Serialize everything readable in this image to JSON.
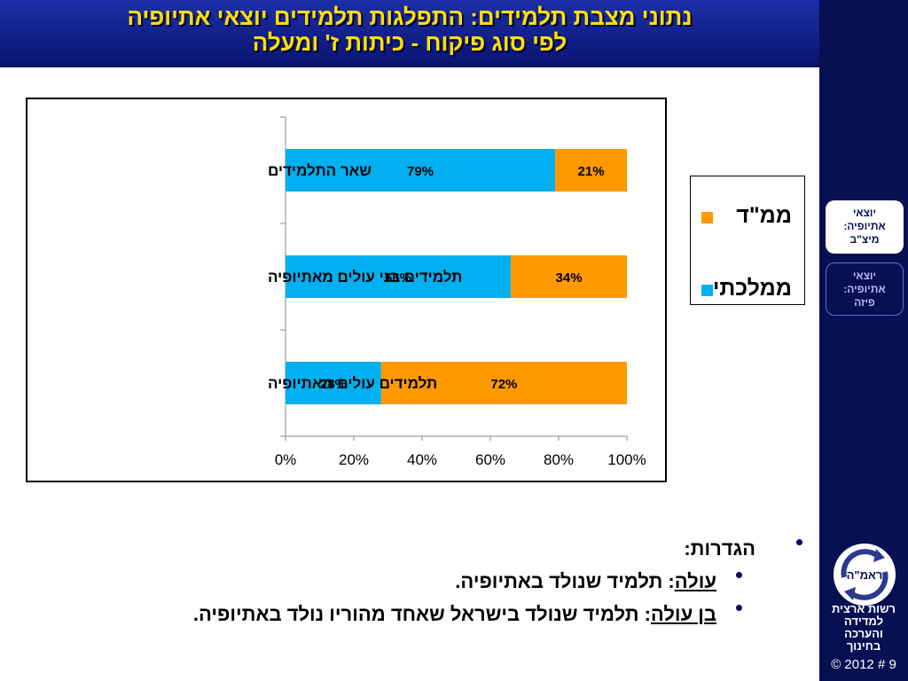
{
  "header": {
    "title_line1": "נתוני מצבת תלמידים: התפלגות תלמידים יוצאי אתיופיה",
    "title_line2": "לפי סוג פיקוח - כיתות ז' ומעלה"
  },
  "sidebar": {
    "tabs": [
      {
        "label_lines": [
          "יוצאי",
          "אתיופיה:",
          "מיצ\"ב"
        ],
        "active": true
      },
      {
        "label_lines": [
          "יוצאי",
          "אתיופיה:",
          "פיזה"
        ],
        "active": false
      }
    ],
    "logo_name": "ראמ\"ה",
    "logo_text_lines": [
      "רשות ארצית",
      "למדידה",
      "והערכה",
      "בחינוך"
    ],
    "footer": "© 2012 # 9"
  },
  "chart_data": {
    "type": "bar",
    "orientation": "horizontal",
    "stacked": true,
    "categories": [
      "שאר התלמידים",
      "תלמידים בני עולים מאתיופיה",
      "תלמידים עולים מאתיופיה"
    ],
    "series": [
      {
        "name": "ממלכתי",
        "color": "#00b0f0",
        "values": [
          79,
          66,
          28
        ],
        "labels": [
          "79%",
          "66%",
          "28%"
        ]
      },
      {
        "name": "ממ\"ד",
        "color": "#ff9900",
        "values": [
          21,
          34,
          72
        ],
        "labels": [
          "21%",
          "34%",
          "72%"
        ]
      }
    ],
    "xlim": [
      0,
      100
    ],
    "xticks": [
      "0%",
      "20%",
      "40%",
      "60%",
      "80%",
      "100%"
    ],
    "grid": false,
    "legend_position": "right",
    "legend_order": [
      "ממ\"ד",
      "ממלכתי"
    ]
  },
  "definitions": {
    "heading": "הגדרות:",
    "items": [
      {
        "term": "עולה",
        "text": ": תלמיד שנולד באתיופיה."
      },
      {
        "term": "בן עולה",
        "text": ": תלמיד שנולד בישראל שאחד מהוריו נולד באתיופיה."
      }
    ]
  }
}
